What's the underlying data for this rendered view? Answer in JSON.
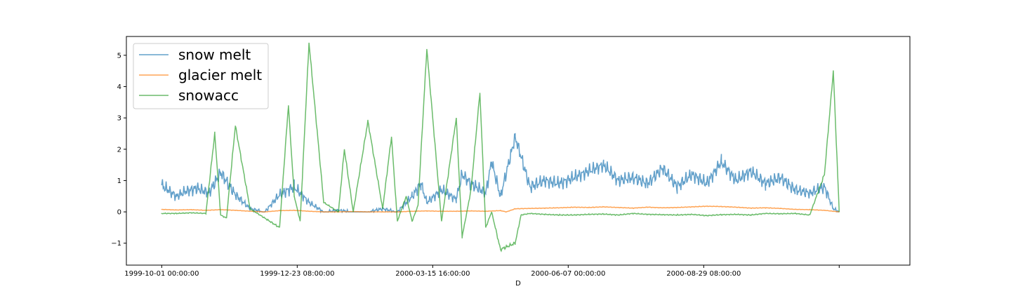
{
  "chart_data": {
    "type": "line",
    "title": "",
    "xlabel": "D",
    "ylabel": "",
    "ylim": [
      -1.7,
      5.6
    ],
    "yticks": [
      -1,
      0,
      1,
      2,
      3,
      4,
      5
    ],
    "ytick_labels": [
      "−1",
      "0",
      "1",
      "2",
      "3",
      "4",
      "5"
    ],
    "xlim": [
      -12,
      254
    ],
    "x_range": [
      0,
      230
    ],
    "xticks": [
      0,
      46,
      92,
      138,
      184,
      230
    ],
    "xtick_labels": [
      "1999-10-01 00:00:00",
      "1999-12-23 08:00:00",
      "2000-03-15 16:00:00",
      "2000-06-07 00:00:00",
      "2000-08-29 08:00:00",
      ""
    ],
    "legend": {
      "placement": "upper-left"
    },
    "grid": false,
    "series": [
      {
        "name": "snow melt",
        "color": "#1f77b4",
        "x": [
          0,
          2,
          5,
          8,
          12,
          16,
          20,
          25,
          30,
          35,
          40,
          45,
          50,
          55,
          60,
          65,
          70,
          75,
          80,
          85,
          88,
          90,
          95,
          100,
          102,
          105,
          110,
          112,
          115,
          120,
          125,
          130,
          135,
          140,
          145,
          150,
          155,
          160,
          165,
          170,
          175,
          180,
          185,
          190,
          195,
          200,
          205,
          210,
          215,
          220,
          225,
          228,
          230
        ],
        "y": [
          0.85,
          0.7,
          0.5,
          0.65,
          0.75,
          0.6,
          1.25,
          0.55,
          0.1,
          0.0,
          0.55,
          0.8,
          0.3,
          0.0,
          0.05,
          0.0,
          0.0,
          0.1,
          0.0,
          0.5,
          0.9,
          0.3,
          0.7,
          0.4,
          1.2,
          0.9,
          0.6,
          1.6,
          0.5,
          2.4,
          0.8,
          1.0,
          0.9,
          1.1,
          1.3,
          1.5,
          1.0,
          1.1,
          0.9,
          1.4,
          0.8,
          1.2,
          0.9,
          1.6,
          1.0,
          1.3,
          0.9,
          1.1,
          0.7,
          0.6,
          0.8,
          0.1,
          0.0
        ]
      },
      {
        "name": "glacier melt",
        "color": "#ff7f0e",
        "x": [
          0,
          5,
          10,
          15,
          20,
          25,
          30,
          35,
          40,
          45,
          50,
          55,
          60,
          65,
          70,
          75,
          80,
          85,
          90,
          95,
          100,
          105,
          110,
          115,
          117,
          120,
          125,
          130,
          135,
          140,
          145,
          150,
          155,
          160,
          165,
          170,
          175,
          180,
          185,
          190,
          195,
          200,
          205,
          210,
          215,
          220,
          225,
          230
        ],
        "y": [
          0.08,
          0.06,
          0.07,
          0.05,
          0.07,
          0.05,
          0.02,
          0.0,
          0.04,
          0.05,
          0.02,
          0.0,
          0.0,
          0.01,
          0.0,
          0.0,
          0.0,
          0.02,
          0.03,
          0.02,
          0.02,
          0.03,
          0.02,
          0.04,
          0.0,
          0.1,
          0.11,
          0.12,
          0.13,
          0.15,
          0.14,
          0.16,
          0.14,
          0.12,
          0.15,
          0.13,
          0.14,
          0.16,
          0.18,
          0.17,
          0.15,
          0.12,
          0.13,
          0.11,
          0.08,
          0.07,
          0.05,
          0.0
        ]
      },
      {
        "name": "snowacc",
        "color": "#2ca02c",
        "x": [
          0,
          5,
          10,
          15,
          18,
          20,
          22,
          25,
          30,
          35,
          40,
          43,
          45,
          47,
          50,
          55,
          60,
          62,
          65,
          70,
          75,
          78,
          80,
          83,
          85,
          87,
          90,
          95,
          100,
          102,
          105,
          108,
          110,
          112,
          115,
          120,
          122,
          125,
          130,
          135,
          140,
          145,
          150,
          155,
          160,
          165,
          170,
          175,
          180,
          185,
          190,
          195,
          200,
          205,
          210,
          215,
          220,
          225,
          228,
          230
        ],
        "y": [
          -0.05,
          -0.05,
          -0.03,
          -0.05,
          2.5,
          -0.1,
          -0.2,
          2.75,
          0.1,
          -0.2,
          -0.5,
          3.4,
          0.5,
          -0.3,
          5.4,
          0.3,
          0.0,
          2.0,
          0.0,
          2.9,
          0.1,
          2.4,
          -0.3,
          0.5,
          -0.3,
          0.2,
          5.2,
          -0.3,
          3.0,
          -0.8,
          0.7,
          3.8,
          -0.5,
          0.0,
          -1.2,
          -1.0,
          -0.1,
          -0.05,
          -0.08,
          -0.1,
          -0.1,
          -0.08,
          -0.07,
          -0.1,
          -0.05,
          -0.08,
          -0.09,
          -0.1,
          -0.08,
          -0.12,
          -0.09,
          -0.08,
          -0.1,
          -0.05,
          -0.06,
          -0.05,
          -0.1,
          1.2,
          4.5,
          0.0
        ]
      }
    ]
  }
}
